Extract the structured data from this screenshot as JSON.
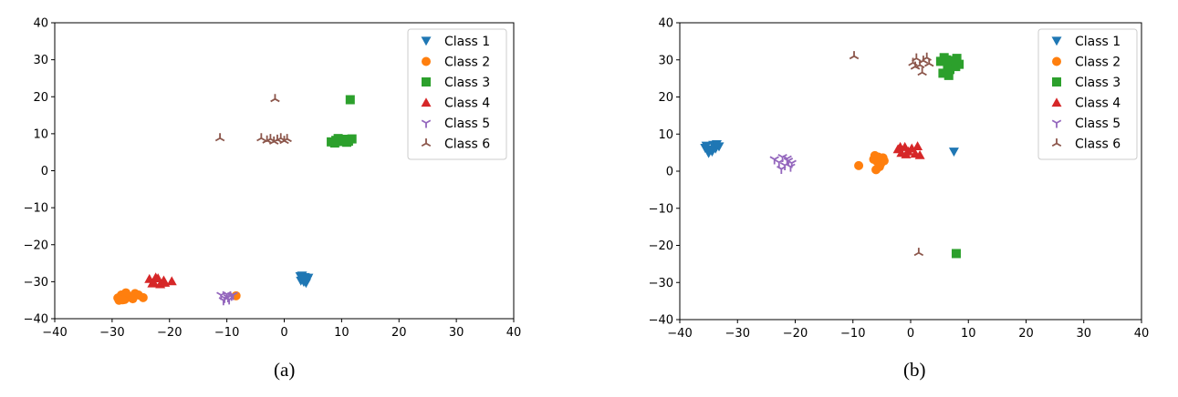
{
  "chart_data": [
    {
      "type": "scatter",
      "caption": "(a)",
      "xlim": [
        -40,
        40
      ],
      "ylim": [
        -40,
        40
      ],
      "xticks": [
        -40,
        -30,
        -20,
        -10,
        0,
        10,
        20,
        30,
        40
      ],
      "yticks": [
        -40,
        -30,
        -20,
        -10,
        0,
        10,
        20,
        30,
        40
      ],
      "legend_position": "top-right",
      "grid": false,
      "series": [
        {
          "name": "Class 1",
          "marker": "triangle-down",
          "color": "#1f77b4",
          "points": [
            [
              2.8,
              -28.6
            ],
            [
              3.2,
              -29.2
            ],
            [
              3.6,
              -28.8
            ],
            [
              4.0,
              -29.6
            ],
            [
              3.4,
              -30.1
            ],
            [
              2.9,
              -29.8
            ],
            [
              3.8,
              -30.4
            ],
            [
              4.2,
              -29.0
            ],
            [
              3.1,
              -28.4
            ],
            [
              3.5,
              -29.5
            ]
          ]
        },
        {
          "name": "Class 2",
          "marker": "circle",
          "color": "#ff7f0e",
          "points": [
            [
              -29.0,
              -34.4
            ],
            [
              -28.4,
              -33.6
            ],
            [
              -27.8,
              -34.8
            ],
            [
              -27.2,
              -33.8
            ],
            [
              -28.8,
              -35.0
            ],
            [
              -26.8,
              -34.2
            ],
            [
              -26.0,
              -33.2
            ],
            [
              -25.4,
              -33.6
            ],
            [
              -24.6,
              -34.3
            ],
            [
              -27.6,
              -33.0
            ],
            [
              -28.2,
              -34.9
            ],
            [
              -26.4,
              -34.6
            ],
            [
              -8.4,
              -33.8
            ]
          ]
        },
        {
          "name": "Class 3",
          "marker": "square",
          "color": "#2ca02c",
          "points": [
            [
              8.2,
              7.8
            ],
            [
              9.0,
              8.2
            ],
            [
              9.8,
              7.9
            ],
            [
              10.5,
              8.5
            ],
            [
              11.2,
              8.0
            ],
            [
              11.8,
              8.6
            ],
            [
              9.4,
              8.7
            ],
            [
              10.9,
              7.7
            ],
            [
              8.8,
              7.5
            ],
            [
              11.5,
              19.2
            ]
          ]
        },
        {
          "name": "Class 4",
          "marker": "triangle-up",
          "color": "#d62728",
          "points": [
            [
              -23.5,
              -29.2
            ],
            [
              -22.8,
              -30.0
            ],
            [
              -22.0,
              -29.0
            ],
            [
              -21.6,
              -30.6
            ],
            [
              -21.0,
              -29.6
            ],
            [
              -22.4,
              -28.8
            ],
            [
              -23.0,
              -30.4
            ],
            [
              -20.8,
              -30.2
            ],
            [
              -19.6,
              -29.8
            ]
          ]
        },
        {
          "name": "Class 5",
          "marker": "tri-down",
          "color": "#9467bd",
          "points": [
            [
              -11.0,
              -33.6
            ],
            [
              -10.4,
              -34.4
            ],
            [
              -10.0,
              -33.4
            ],
            [
              -9.6,
              -34.8
            ],
            [
              -9.2,
              -33.8
            ],
            [
              -10.6,
              -35.0
            ],
            [
              -9.8,
              -34.2
            ],
            [
              -8.9,
              -33.6
            ]
          ]
        },
        {
          "name": "Class 6",
          "marker": "tri-up",
          "color": "#8c564b",
          "points": [
            [
              -11.2,
              8.8
            ],
            [
              -4.0,
              8.8
            ],
            [
              -3.0,
              8.2
            ],
            [
              -2.4,
              8.6
            ],
            [
              -1.8,
              7.9
            ],
            [
              -1.2,
              8.4
            ],
            [
              -0.6,
              8.8
            ],
            [
              0.0,
              8.1
            ],
            [
              0.5,
              8.6
            ],
            [
              -1.6,
              19.4
            ]
          ]
        }
      ]
    },
    {
      "type": "scatter",
      "caption": "(b)",
      "xlim": [
        -40,
        40
      ],
      "ylim": [
        -40,
        40
      ],
      "xticks": [
        -40,
        -30,
        -20,
        -10,
        0,
        10,
        20,
        30,
        40
      ],
      "yticks": [
        -40,
        -30,
        -20,
        -10,
        0,
        10,
        20,
        30,
        40
      ],
      "legend_position": "top-right",
      "grid": false,
      "series": [
        {
          "name": "Class 1",
          "marker": "triangle-down",
          "color": "#1f77b4",
          "points": [
            [
              -35.4,
              6.8
            ],
            [
              -34.8,
              5.8
            ],
            [
              -34.2,
              7.0
            ],
            [
              -35.0,
              4.8
            ],
            [
              -33.8,
              6.0
            ],
            [
              -33.2,
              6.6
            ],
            [
              -34.4,
              5.2
            ],
            [
              -35.6,
              6.2
            ],
            [
              -33.6,
              7.2
            ],
            [
              7.5,
              5.2
            ]
          ]
        },
        {
          "name": "Class 2",
          "marker": "circle",
          "color": "#ff7f0e",
          "points": [
            [
              -9.0,
              1.5
            ],
            [
              -6.2,
              4.2
            ],
            [
              -5.8,
              2.6
            ],
            [
              -5.4,
              1.2
            ],
            [
              -6.0,
              0.4
            ],
            [
              -4.8,
              3.6
            ],
            [
              -5.2,
              2.0
            ],
            [
              -4.6,
              2.8
            ],
            [
              -6.4,
              3.2
            ],
            [
              -5.6,
              3.8
            ]
          ]
        },
        {
          "name": "Class 3",
          "marker": "square",
          "color": "#2ca02c",
          "points": [
            [
              5.2,
              29.6
            ],
            [
              5.8,
              30.6
            ],
            [
              6.4,
              28.6
            ],
            [
              6.8,
              27.4
            ],
            [
              7.4,
              29.8
            ],
            [
              8.0,
              30.4
            ],
            [
              8.4,
              28.8
            ],
            [
              5.6,
              26.4
            ],
            [
              6.6,
              25.8
            ],
            [
              7.8,
              28.2
            ],
            [
              6.2,
              30.0
            ],
            [
              7.9,
              -22.2
            ]
          ]
        },
        {
          "name": "Class 4",
          "marker": "triangle-up",
          "color": "#d62728",
          "points": [
            [
              -2.2,
              6.0
            ],
            [
              -1.6,
              5.0
            ],
            [
              -1.0,
              6.6
            ],
            [
              -0.4,
              5.4
            ],
            [
              0.2,
              6.2
            ],
            [
              0.8,
              4.8
            ],
            [
              1.2,
              6.8
            ],
            [
              -0.8,
              4.6
            ],
            [
              1.6,
              4.4
            ],
            [
              -1.8,
              6.6
            ]
          ]
        },
        {
          "name": "Class 5",
          "marker": "tri-down",
          "color": "#9467bd",
          "points": [
            [
              -23.6,
              3.2
            ],
            [
              -22.8,
              2.4
            ],
            [
              -22.2,
              3.8
            ],
            [
              -21.8,
              1.6
            ],
            [
              -21.2,
              2.8
            ],
            [
              -20.8,
              1.2
            ],
            [
              -22.4,
              0.6
            ],
            [
              -21.4,
              3.4
            ],
            [
              -20.6,
              2.2
            ]
          ]
        },
        {
          "name": "Class 6",
          "marker": "tri-up",
          "color": "#8c564b",
          "points": [
            [
              -9.8,
              31.0
            ],
            [
              0.4,
              29.2
            ],
            [
              1.0,
              30.4
            ],
            [
              1.6,
              28.6
            ],
            [
              2.2,
              29.8
            ],
            [
              2.8,
              30.6
            ],
            [
              3.2,
              29.0
            ],
            [
              2.0,
              26.6
            ],
            [
              0.8,
              28.2
            ],
            [
              1.4,
              -22.0
            ]
          ]
        }
      ]
    }
  ]
}
